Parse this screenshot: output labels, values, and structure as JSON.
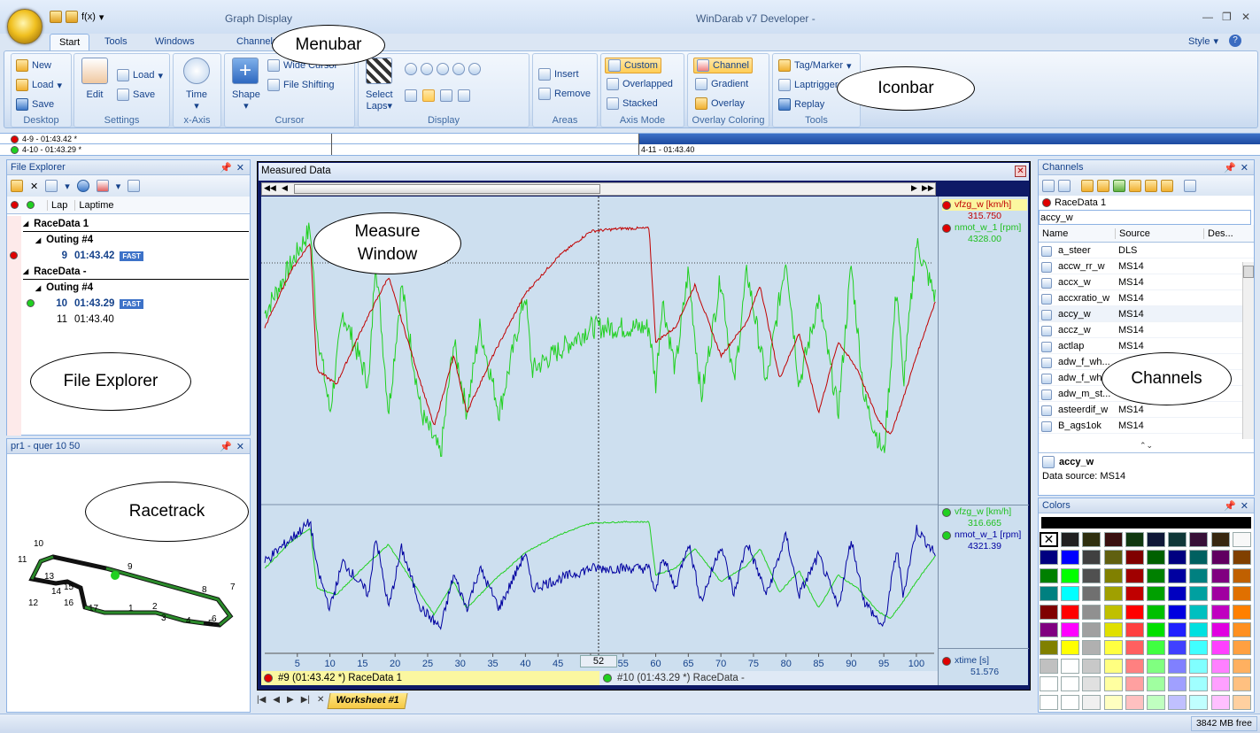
{
  "window": {
    "app_title": "WinDarab v7 Developer -",
    "context_title": "Graph Display"
  },
  "qat": {
    "fx_label": "f(x)"
  },
  "tabs": [
    "Start",
    "Tools",
    "Windows",
    "Channels"
  ],
  "tabs_right": {
    "style": "Style"
  },
  "ribbon": {
    "desktop": {
      "label": "Desktop",
      "new": "New",
      "load": "Load",
      "save": "Save"
    },
    "settings": {
      "label": "Settings",
      "edit": "Edit",
      "load": "Load",
      "save": "Save"
    },
    "xaxis": {
      "label": "x-Axis",
      "time": "Time"
    },
    "cursor": {
      "label": "Cursor",
      "shape": "Shape",
      "wide": "Wide Cursor",
      "file_shifting": "File Shifting"
    },
    "display": {
      "label": "Display",
      "select_laps": "Select",
      "select_laps2": "Laps"
    },
    "areas": {
      "label": "Areas",
      "insert": "Insert",
      "remove": "Remove"
    },
    "axis_mode": {
      "label": "Axis Mode",
      "custom": "Custom",
      "overlapped": "Overlapped",
      "stacked": "Stacked"
    },
    "overlay": {
      "label": "Overlay Coloring",
      "channel": "Channel",
      "gradient": "Gradient",
      "overlay": "Overlay"
    },
    "tools": {
      "label": "Tools",
      "tag": "Tag/Marker",
      "laptrigger": "Laptrigger",
      "replay": "Replay"
    }
  },
  "lap_bar": {
    "row1": "4-9 - 01:43.42 *",
    "row2": "4-10 - 01:43.29 *",
    "row2_right": "4-11 - 01:43.40"
  },
  "file_explorer": {
    "title": "File Explorer",
    "columns": [
      "Lap",
      "Laptime"
    ],
    "groups": [
      {
        "name": "RaceData 1",
        "outing": "Outing #4",
        "laps": [
          {
            "lap": "9",
            "time": "01:43.42",
            "badge": "FAST"
          }
        ]
      },
      {
        "name": "RaceData -",
        "outing": "Outing #4",
        "laps": [
          {
            "lap": "10",
            "time": "01:43.29",
            "badge": "FAST"
          },
          {
            "lap": "11",
            "time": "01:43.40",
            "badge": ""
          }
        ]
      }
    ]
  },
  "racetrack": {
    "title": "pr1 - quer 10 50",
    "turns": [
      "10",
      "11",
      "13",
      "15",
      "14",
      "16",
      "12",
      "17",
      "1",
      "2",
      "3",
      "4",
      "5",
      "6",
      "7",
      "8",
      "9"
    ]
  },
  "measure": {
    "title": "Measured Data",
    "top_legend": [
      {
        "name": "vfzg_w [km/h]",
        "value": "315.750",
        "color": "#e00000"
      },
      {
        "name": "nmot_w_1 [rpm]",
        "value": "4328.00",
        "color": "#20d020"
      }
    ],
    "bottom_legend": [
      {
        "name": "vfzg_w [km/h]",
        "value": "316.665",
        "color": "#20d020"
      },
      {
        "name": "nmot_w_1 [rpm]",
        "value": "4321.39",
        "color": "#0000a0"
      }
    ],
    "xaxis_legend": {
      "name": "xtime [s]",
      "value": "51.576"
    },
    "cursor_value": "52",
    "lap1": "#9 (01:43.42 *) RaceData 1",
    "lap2": "#10 (01:43.29 *) RaceData -",
    "worksheet": "Worksheet #1"
  },
  "chart_data": {
    "type": "line",
    "xlabel": "xtime [s]",
    "x_ticks": [
      "5",
      "10",
      "15",
      "20",
      "25",
      "30",
      "35",
      "40",
      "45",
      "50",
      "55",
      "60",
      "65",
      "70",
      "75",
      "80",
      "85",
      "90",
      "95",
      "100"
    ],
    "xlim": [
      0,
      103
    ]
  },
  "channels": {
    "title": "Channels",
    "source_file": "RaceData 1",
    "search": "accy_w",
    "columns": [
      "Name",
      "Source",
      "Des..."
    ],
    "rows": [
      {
        "name": "a_steer",
        "source": "DLS"
      },
      {
        "name": "accw_rr_w",
        "source": "MS14"
      },
      {
        "name": "accx_w",
        "source": "MS14"
      },
      {
        "name": "accxratio_w",
        "source": "MS14"
      },
      {
        "name": "accy_w",
        "source": "MS14"
      },
      {
        "name": "accz_w",
        "source": "MS14"
      },
      {
        "name": "actlap",
        "source": "MS14"
      },
      {
        "name": "adw_f_wh...",
        "source": ""
      },
      {
        "name": "adw_f_wh...",
        "source": ""
      },
      {
        "name": "adw_m_st...",
        "source": "DL"
      },
      {
        "name": "asteerdif_w",
        "source": "MS14"
      },
      {
        "name": "B_ags1ok",
        "source": "MS14"
      }
    ],
    "detail_name": "accy_w",
    "detail_source": "Data source: MS14"
  },
  "colors": {
    "title": "Colors"
  },
  "status": {
    "memory": "3842 MB free"
  },
  "callouts": {
    "menubar": "Menubar",
    "iconbar": "Iconbar",
    "measure1": "Measure",
    "measure2": "Window",
    "file_explorer": "File Explorer",
    "racetrack": "Racetrack",
    "channels": "Channels"
  }
}
